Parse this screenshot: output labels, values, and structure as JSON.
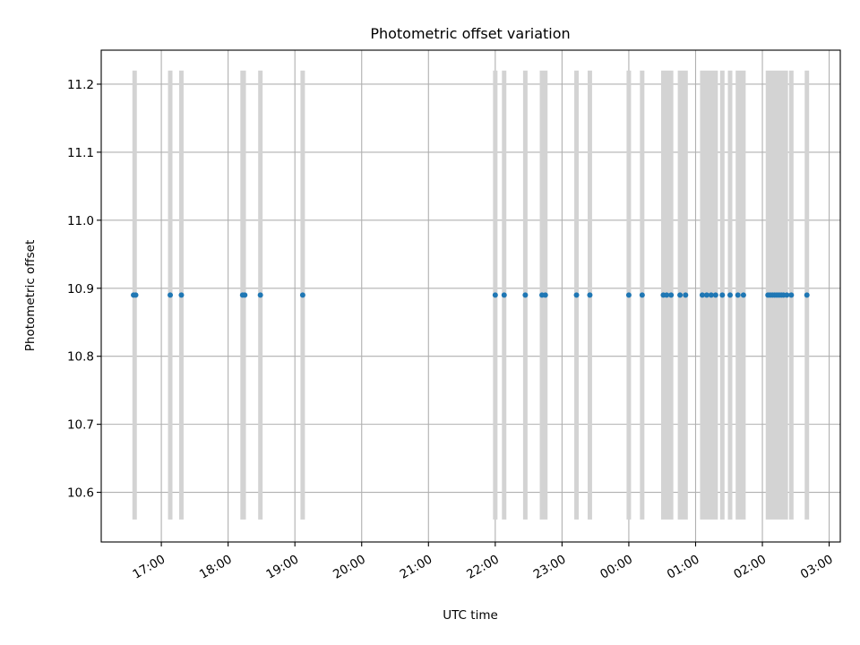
{
  "chart_data": {
    "type": "scatter",
    "title": "Photometric offset variation",
    "xlabel": "UTC time",
    "ylabel": "Photometric offset",
    "xlim": [
      "16:06",
      "03:10"
    ],
    "ylim": [
      10.527,
      11.25
    ],
    "x_ticks": [
      "17:00",
      "18:00",
      "19:00",
      "20:00",
      "21:00",
      "22:00",
      "23:00",
      "00:00",
      "01:00",
      "02:00",
      "03:00"
    ],
    "y_ticks": [
      "10.6",
      "10.7",
      "10.8",
      "10.9",
      "11.0",
      "11.1",
      "11.2"
    ],
    "grid": true,
    "band_range": [
      10.56,
      11.22
    ],
    "series": [
      {
        "color": "#1f77b4",
        "x": [
          "16:35",
          "16:37",
          "17:08",
          "17:18",
          "18:13",
          "18:15",
          "18:29",
          "19:07",
          "22:00",
          "22:08",
          "22:27",
          "22:42",
          "22:45",
          "23:13",
          "23:25",
          "00:00",
          "00:12",
          "00:31",
          "00:34",
          "00:38",
          "00:46",
          "00:51",
          "01:06",
          "01:10",
          "01:14",
          "01:18",
          "01:24",
          "01:31",
          "01:38",
          "01:43",
          "02:05",
          "02:07",
          "02:09",
          "02:11",
          "02:13",
          "02:15",
          "02:17",
          "02:19",
          "02:22",
          "02:26",
          "02:40"
        ],
        "y": [
          10.89,
          10.89,
          10.89,
          10.89,
          10.89,
          10.89,
          10.89,
          10.89,
          10.89,
          10.89,
          10.89,
          10.89,
          10.89,
          10.89,
          10.89,
          10.89,
          10.89,
          10.89,
          10.89,
          10.89,
          10.89,
          10.89,
          10.89,
          10.89,
          10.89,
          10.89,
          10.89,
          10.89,
          10.89,
          10.89,
          10.89,
          10.89,
          10.89,
          10.89,
          10.89,
          10.89,
          10.89,
          10.89,
          10.89,
          10.89,
          10.89
        ]
      }
    ],
    "bands": [
      {
        "start": "16:34",
        "end": "16:38"
      },
      {
        "start": "17:06",
        "end": "17:10"
      },
      {
        "start": "17:16",
        "end": "17:20"
      },
      {
        "start": "18:11",
        "end": "18:16"
      },
      {
        "start": "18:27",
        "end": "18:31"
      },
      {
        "start": "19:05",
        "end": "19:09"
      },
      {
        "start": "21:58",
        "end": "22:02"
      },
      {
        "start": "22:06",
        "end": "22:10"
      },
      {
        "start": "22:25",
        "end": "22:29"
      },
      {
        "start": "22:40",
        "end": "22:47"
      },
      {
        "start": "23:11",
        "end": "23:15"
      },
      {
        "start": "23:23",
        "end": "23:27"
      },
      {
        "start": "23:58",
        "end": "00:02"
      },
      {
        "start": "00:10",
        "end": "00:14"
      },
      {
        "start": "00:29",
        "end": "00:40"
      },
      {
        "start": "00:44",
        "end": "00:53"
      },
      {
        "start": "01:04",
        "end": "01:20"
      },
      {
        "start": "01:22",
        "end": "01:26"
      },
      {
        "start": "01:29",
        "end": "01:33"
      },
      {
        "start": "01:36",
        "end": "01:45"
      },
      {
        "start": "02:03",
        "end": "02:23"
      },
      {
        "start": "02:24",
        "end": "02:28"
      },
      {
        "start": "02:38",
        "end": "02:42"
      }
    ]
  }
}
